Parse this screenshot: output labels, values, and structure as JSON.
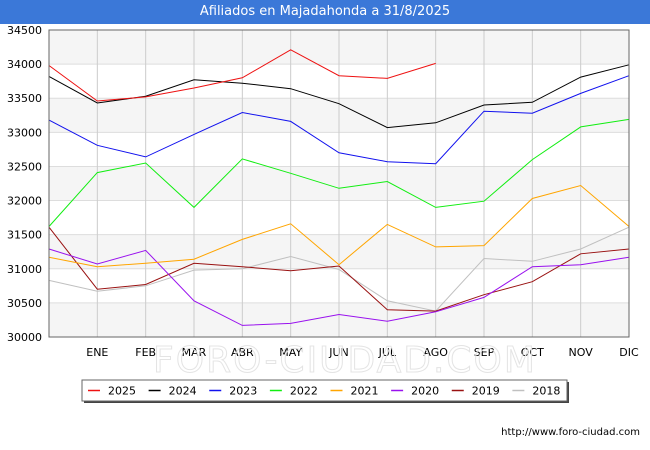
{
  "header": {
    "title": "Afiliados en Majadahonda a 31/8/2025"
  },
  "footer": {
    "source": "http://www.foro-ciudad.com"
  },
  "watermark": "FORO-CIUDAD.COM",
  "chart_data": {
    "type": "line",
    "title": "Afiliados en Majadahonda a 31/8/2025",
    "categories": [
      "",
      "ENE",
      "FEB",
      "MAR",
      "ABR",
      "MAY",
      "JUN",
      "JUL",
      "AGO",
      "SEP",
      "OCT",
      "NOV",
      "DIC"
    ],
    "ylim": [
      30000,
      34500
    ],
    "yticks": [
      30000,
      30500,
      31000,
      31500,
      32000,
      32500,
      33000,
      33500,
      34000,
      34500
    ],
    "legend_position": "bottom",
    "series": [
      {
        "name": "2025",
        "color": "#ee1111",
        "values": [
          33980,
          33460,
          33520,
          33650,
          33800,
          34210,
          33830,
          33790,
          34010,
          null,
          null,
          null,
          null
        ]
      },
      {
        "name": "2024",
        "color": "#000000",
        "values": [
          33820,
          33430,
          33530,
          33770,
          33720,
          33640,
          33420,
          33070,
          33140,
          33400,
          33440,
          33810,
          33990
        ]
      },
      {
        "name": "2023",
        "color": "#1111ee",
        "values": [
          33180,
          32810,
          32640,
          32970,
          33290,
          33160,
          32700,
          32570,
          32540,
          33310,
          33280,
          33570,
          33830
        ]
      },
      {
        "name": "2022",
        "color": "#11ee11",
        "values": [
          31620,
          32410,
          32550,
          31900,
          32610,
          32400,
          32180,
          32280,
          31900,
          31990,
          32600,
          33080,
          33190
        ]
      },
      {
        "name": "2021",
        "color": "#ffa500",
        "values": [
          31170,
          31030,
          31080,
          31140,
          31430,
          31660,
          31060,
          31650,
          31320,
          31340,
          32030,
          32220,
          31620
        ]
      },
      {
        "name": "2020",
        "color": "#9911ee",
        "values": [
          31290,
          31070,
          31270,
          30530,
          30170,
          30200,
          30330,
          30230,
          30370,
          30580,
          31030,
          31060,
          31170
        ]
      },
      {
        "name": "2019",
        "color": "#991111",
        "values": [
          31610,
          30700,
          30770,
          31080,
          31030,
          30970,
          31040,
          30400,
          30380,
          30620,
          30810,
          31220,
          31290
        ]
      },
      {
        "name": "2018",
        "color": "#c0c0c0",
        "values": [
          30830,
          30670,
          30750,
          30980,
          31000,
          31180,
          30990,
          30530,
          30380,
          31150,
          31110,
          31290,
          31610
        ]
      }
    ]
  }
}
